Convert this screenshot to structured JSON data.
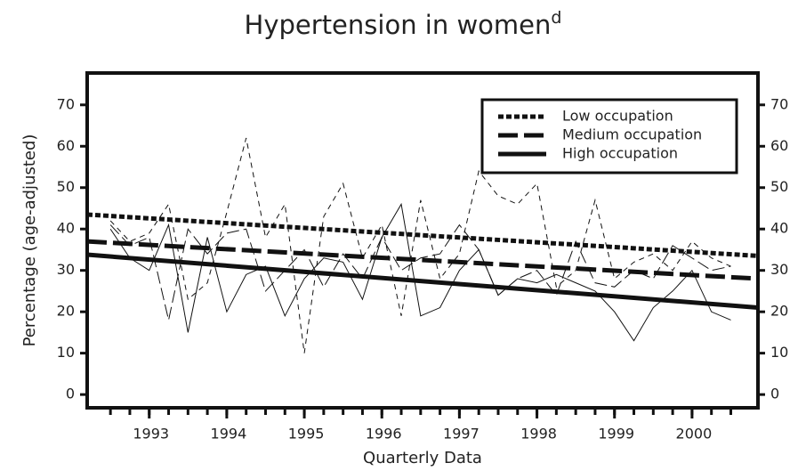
{
  "chart_data": {
    "type": "line",
    "title": "Hypertension in women",
    "title_superscript": "d",
    "x_label": "Quarterly Data",
    "y_label": "Percentage (age-adjusted)",
    "xlim": [
      1992.2,
      2000.85
    ],
    "ylim": [
      -3.2,
      77.7
    ],
    "xticks": [
      1993,
      1994,
      1995,
      1996,
      1997,
      1998,
      1999,
      2000
    ],
    "yticks": [
      0,
      10,
      20,
      30,
      40,
      50,
      60,
      70
    ],
    "y2ticks": [
      0,
      10,
      20,
      30,
      40,
      50,
      60,
      70
    ],
    "legend": "top-right",
    "x": [
      1992.5,
      1992.75,
      1993,
      1993.25,
      1993.5,
      1993.75,
      1994,
      1994.25,
      1994.5,
      1994.75,
      1995,
      1995.25,
      1995.5,
      1995.75,
      1996,
      1996.25,
      1996.5,
      1996.75,
      1997,
      1997.25,
      1997.5,
      1997.75,
      1998,
      1998.25,
      1998.5,
      1998.75,
      1999,
      1999.25,
      1999.5,
      1999.75,
      2000,
      2000.25,
      2000.5
    ],
    "series": [
      {
        "name": "Low occupation",
        "color": "#111111",
        "style": "dotted",
        "values": [
          42,
          37,
          39,
          46,
          23,
          27,
          44,
          62,
          38,
          46,
          10,
          43,
          51,
          33,
          41,
          19,
          47,
          28,
          34,
          54,
          48,
          46,
          51,
          26,
          30,
          47,
          28,
          32,
          34,
          30,
          37,
          33,
          31
        ],
        "trend": [
          43.5,
          33.5
        ]
      },
      {
        "name": "Medium occupation",
        "color": "#111111",
        "style": "dashed",
        "values": [
          41,
          36,
          38,
          18,
          40,
          34,
          39,
          40,
          25,
          30,
          35,
          26,
          34,
          28,
          38,
          30,
          33,
          34,
          41,
          35,
          24,
          28,
          30,
          24,
          37,
          27,
          26,
          30,
          28,
          36,
          33,
          30,
          31
        ],
        "trend": [
          37,
          28
        ]
      },
      {
        "name": "High occupation",
        "color": "#111111",
        "style": "solid",
        "values": [
          40,
          33,
          30,
          41,
          15,
          38,
          20,
          29,
          31,
          19,
          28,
          33,
          32,
          23,
          38,
          46,
          19,
          21,
          30,
          35,
          24,
          28,
          27,
          29,
          27,
          25,
          20,
          13,
          21,
          25,
          30,
          20,
          18
        ],
        "trend": [
          33.8,
          21
        ]
      }
    ]
  }
}
